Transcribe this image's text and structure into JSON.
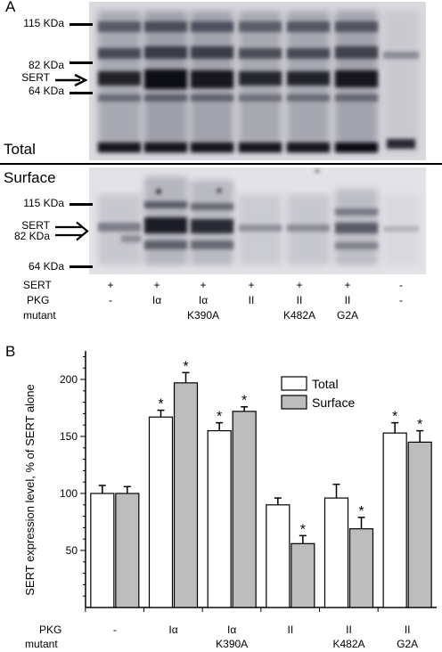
{
  "panel_a": {
    "letter": "A",
    "total_label": "Total",
    "surface_label": "Surface",
    "total_markers": [
      "115 KDa",
      "82 KDa",
      "SERT",
      "64 KDa"
    ],
    "surface_markers": [
      "115 KDa",
      "SERT",
      "82 KDa",
      "64 KDa"
    ],
    "rows": [
      {
        "name": "SERT",
        "values": [
          "+",
          "+",
          "+",
          "+",
          "+",
          "+",
          "-"
        ]
      },
      {
        "name": "PKG",
        "values": [
          "-",
          "Iα",
          "Iα",
          "II",
          "II",
          "II",
          "-"
        ]
      },
      {
        "name": "mutant",
        "values": [
          "",
          "",
          "K390A",
          "",
          "K482A",
          "G2A",
          ""
        ]
      }
    ]
  },
  "panel_b": {
    "letter": "B",
    "row_labels": {
      "pkg": "PKG",
      "mutant": "mutant"
    }
  },
  "chart_data": {
    "type": "bar",
    "title": "",
    "xlabel": "",
    "ylabel": "SERT expression level, % of SERT alone",
    "ylim": [
      0,
      225
    ],
    "yticks": [
      50,
      100,
      150,
      200
    ],
    "categories": [
      "-",
      "Iα",
      "Iα K390A",
      "II",
      "II K482A",
      "II G2A"
    ],
    "pkg": [
      "-",
      "Iα",
      "Iα",
      "II",
      "II",
      "II"
    ],
    "mutant": [
      "",
      "",
      "K390A",
      "",
      "K482A",
      "G2A"
    ],
    "legend_position": "top-right",
    "series": [
      {
        "name": "Total",
        "color": "#ffffff",
        "values": [
          100,
          167,
          155,
          90,
          96,
          153
        ],
        "errors": [
          7,
          6,
          7,
          6,
          12,
          9
        ],
        "significant": [
          false,
          true,
          true,
          false,
          false,
          true
        ]
      },
      {
        "name": "Surface",
        "color": "#bdbdbd",
        "values": [
          100,
          197,
          172,
          56,
          69,
          145
        ],
        "errors": [
          6,
          9,
          4,
          7,
          10,
          10
        ],
        "significant": [
          false,
          true,
          true,
          true,
          true,
          true
        ]
      }
    ],
    "significance_marker": "*"
  }
}
